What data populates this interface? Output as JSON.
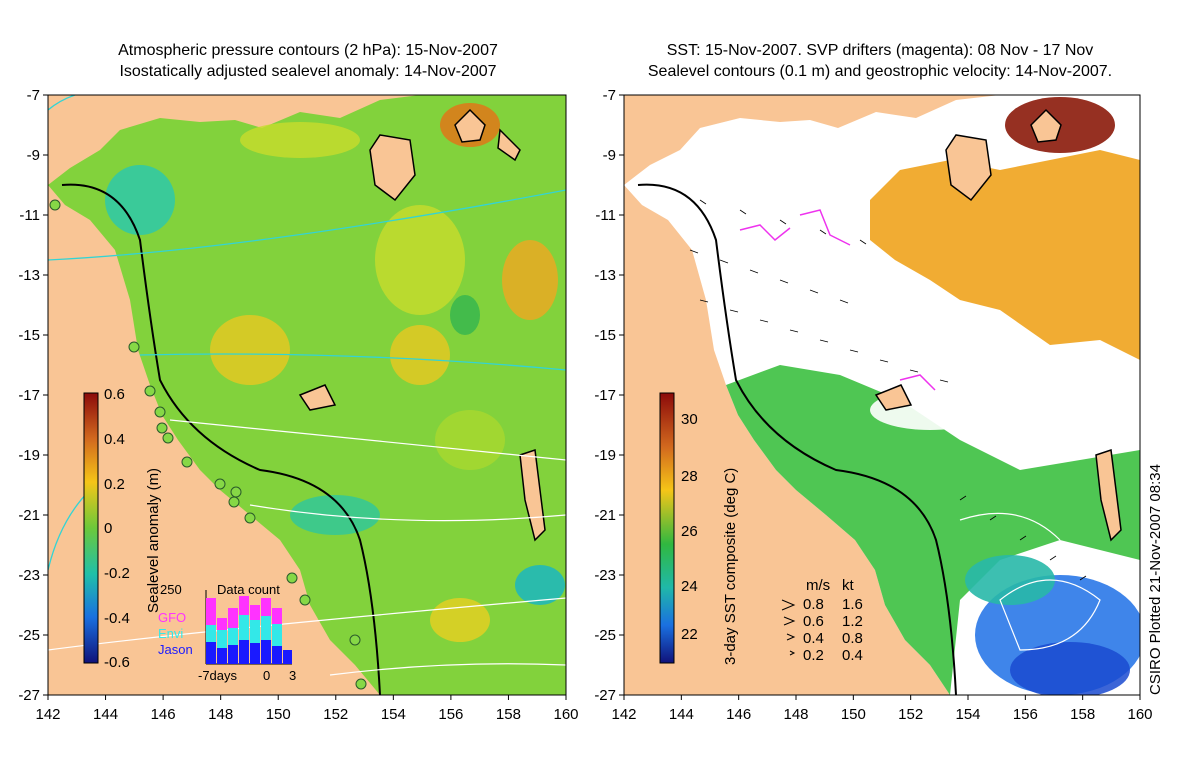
{
  "left_panel": {
    "title_line1": "Atmospheric pressure contours (2 hPa): 15-Nov-2007",
    "title_line2": "Isostatically adjusted sealevel anomaly: 14-Nov-2007",
    "colorbar": {
      "label": "Sealevel anomaly (m)",
      "ticks": [
        "0.6",
        "0.4",
        "0.2",
        "0",
        "-0.2",
        "-0.4",
        "-0.6"
      ]
    },
    "data_count": {
      "title": "Data count",
      "y_max_label": "250",
      "legend": [
        {
          "name": "GFO",
          "color": "#ff33ff"
        },
        {
          "name": "Envi",
          "color": "#33e8e8"
        },
        {
          "name": "Jason",
          "color": "#1a1aff"
        }
      ],
      "x_labels": [
        "-7days",
        "0",
        "3"
      ]
    }
  },
  "right_panel": {
    "title_line1": "SST: 15-Nov-2007. SVP drifters (magenta): 08 Nov - 17 Nov",
    "title_line2": "Sealevel contours (0.1 m) and geostrophic velocity: 14-Nov-2007.",
    "colorbar": {
      "label": "3-day SST composite (deg C)",
      "ticks": [
        "30",
        "28",
        "26",
        "24",
        "22"
      ]
    },
    "velocity_legend": {
      "header_ms": "m/s",
      "header_kt": "kt",
      "rows": [
        {
          "ms": "0.8",
          "kt": "1.6"
        },
        {
          "ms": "0.6",
          "kt": "1.2"
        },
        {
          "ms": "0.4",
          "kt": "0.8"
        },
        {
          "ms": "0.2",
          "kt": "0.4"
        }
      ]
    }
  },
  "axes": {
    "x_ticks": [
      "142",
      "144",
      "146",
      "148",
      "150",
      "152",
      "154",
      "156",
      "158",
      "160"
    ],
    "y_ticks": [
      "-7",
      "-9",
      "-11",
      "-13",
      "-15",
      "-17",
      "-19",
      "-21",
      "-23",
      "-25",
      "-27"
    ]
  },
  "credit": "CSIRO Plotted 21-Nov-2007 08:34",
  "colors": {
    "land": "#f9c595",
    "ocean_sla": "#7ed23a",
    "ocean_cloud": "#ffffff"
  }
}
